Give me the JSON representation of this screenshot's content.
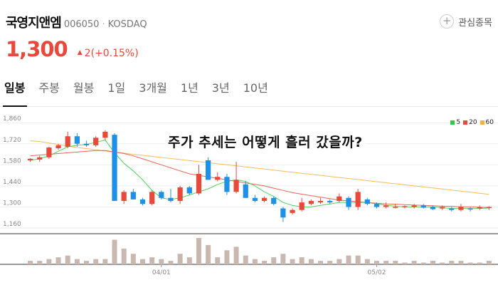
{
  "stock": {
    "name": "국영지앤엠",
    "code": "006050",
    "separator": "·",
    "market": "KOSDAQ",
    "price": "1,300",
    "change_arrow": "▲",
    "change": "2(+0.15%)",
    "up_color": "#e8493a",
    "down_color": "#1e90e8"
  },
  "watch": {
    "icon": "plus-icon",
    "plus": "+",
    "label": "관심종목"
  },
  "tabs": [
    {
      "label": "일봉",
      "active": true
    },
    {
      "label": "주봉",
      "active": false
    },
    {
      "label": "월봉",
      "active": false
    },
    {
      "label": "1일",
      "active": false
    },
    {
      "label": "3개월",
      "active": false
    },
    {
      "label": "1년",
      "active": false
    },
    {
      "label": "3년",
      "active": false
    },
    {
      "label": "10년",
      "active": false
    }
  ],
  "overlay": {
    "title": "주가 추세는 어떻게 흘러 갔을까?"
  },
  "chart_data": {
    "type": "candlestick",
    "y_ticks": [
      "1,860",
      "1,720",
      "1,580",
      "1,440",
      "1,300",
      "1,160"
    ],
    "y_tick_values": [
      1860,
      1720,
      1580,
      1440,
      1300,
      1160
    ],
    "ylim": [
      1160,
      1880
    ],
    "x_ticks": [
      {
        "label": "04/01",
        "index": 14
      },
      {
        "label": "05/02",
        "index": 37
      }
    ],
    "legend": [
      {
        "name": "5",
        "color": "#2ecc40"
      },
      {
        "name": "20",
        "color": "#e8493a"
      },
      {
        "name": "60",
        "color": "#f5b041"
      }
    ],
    "candles": [
      [
        1610,
        1625,
        1600,
        1620,
        2
      ],
      [
        1615,
        1640,
        1600,
        1630,
        2
      ],
      [
        1630,
        1700,
        1620,
        1695,
        3
      ],
      [
        1690,
        1720,
        1680,
        1710,
        4
      ],
      [
        1700,
        1800,
        1690,
        1770,
        5
      ],
      [
        1770,
        1790,
        1700,
        1720,
        3
      ],
      [
        1720,
        1740,
        1700,
        1710,
        2
      ],
      [
        1710,
        1770,
        1700,
        1760,
        3
      ],
      [
        1760,
        1810,
        1740,
        1800,
        3
      ],
      [
        1780,
        1790,
        1340,
        1340,
        14
      ],
      [
        1340,
        1410,
        1320,
        1400,
        9
      ],
      [
        1400,
        1420,
        1350,
        1350,
        6
      ],
      [
        1350,
        1360,
        1310,
        1320,
        3
      ],
      [
        1320,
        1410,
        1310,
        1400,
        4
      ],
      [
        1400,
        1410,
        1350,
        1360,
        3
      ],
      [
        1360,
        1420,
        1330,
        1340,
        2
      ],
      [
        1340,
        1440,
        1320,
        1430,
        6
      ],
      [
        1430,
        1440,
        1380,
        1390,
        4
      ],
      [
        1390,
        1580,
        1380,
        1520,
        15
      ],
      [
        1610,
        1630,
        1480,
        1480,
        11
      ],
      [
        1480,
        1530,
        1470,
        1500,
        4
      ],
      [
        1500,
        1520,
        1380,
        1400,
        8
      ],
      [
        1400,
        1600,
        1390,
        1480,
        10
      ],
      [
        1450,
        1470,
        1360,
        1360,
        5
      ],
      [
        1360,
        1380,
        1330,
        1340,
        3
      ],
      [
        1340,
        1370,
        1330,
        1360,
        2
      ],
      [
        1360,
        1370,
        1310,
        1320,
        4
      ],
      [
        1290,
        1300,
        1200,
        1230,
        6
      ],
      [
        1260,
        1290,
        1250,
        1280,
        3
      ],
      [
        1280,
        1360,
        1270,
        1330,
        4
      ],
      [
        1320,
        1350,
        1310,
        1340,
        3
      ],
      [
        1330,
        1360,
        1320,
        1340,
        2
      ],
      [
        1340,
        1350,
        1320,
        1330,
        2
      ],
      [
        1340,
        1390,
        1330,
        1370,
        3
      ],
      [
        1360,
        1370,
        1280,
        1300,
        5
      ],
      [
        1300,
        1420,
        1280,
        1400,
        5
      ],
      [
        1350,
        1360,
        1310,
        1320,
        3
      ],
      [
        1320,
        1330,
        1290,
        1300,
        2
      ],
      [
        1300,
        1330,
        1290,
        1310,
        2
      ],
      [
        1300,
        1320,
        1290,
        1300,
        2
      ],
      [
        1300,
        1310,
        1290,
        1305,
        1
      ],
      [
        1300,
        1320,
        1290,
        1310,
        2
      ],
      [
        1310,
        1320,
        1290,
        1295,
        1
      ],
      [
        1300,
        1310,
        1280,
        1285,
        2
      ],
      [
        1290,
        1310,
        1280,
        1300,
        1
      ],
      [
        1290,
        1300,
        1270,
        1280,
        2
      ],
      [
        1280,
        1320,
        1270,
        1300,
        2
      ],
      [
        1290,
        1300,
        1270,
        1285,
        1
      ],
      [
        1290,
        1310,
        1280,
        1300,
        1
      ],
      [
        1295,
        1305,
        1280,
        1300,
        2
      ]
    ],
    "ma5": [
      1610,
      1620,
      1640,
      1670,
      1700,
      1710,
      1715,
      1730,
      1745,
      1660,
      1590,
      1540,
      1480,
      1410,
      1360,
      1350,
      1360,
      1380,
      1400,
      1420,
      1450,
      1470,
      1480,
      1470,
      1440,
      1400,
      1370,
      1330,
      1310,
      1300,
      1300,
      1310,
      1320,
      1330,
      1330,
      1330,
      1330,
      1320,
      1310,
      1305,
      1300,
      1300,
      1300,
      1300,
      1295,
      1290,
      1290,
      1290,
      1290,
      1293
    ],
    "ma20": [
      1640,
      1645,
      1650,
      1655,
      1660,
      1665,
      1670,
      1675,
      1675,
      1665,
      1655,
      1640,
      1620,
      1600,
      1580,
      1560,
      1540,
      1520,
      1510,
      1500,
      1490,
      1480,
      1470,
      1460,
      1450,
      1440,
      1425,
      1410,
      1395,
      1385,
      1375,
      1365,
      1355,
      1345,
      1340,
      1335,
      1330,
      1325,
      1320,
      1318,
      1315,
      1312,
      1310,
      1308,
      1305,
      1303,
      1301,
      1300,
      1298,
      1296
    ],
    "ma60": [
      1740,
      1735,
      1725,
      1715,
      1705,
      1695,
      1688,
      1680,
      1672,
      1665,
      1658,
      1650,
      1643,
      1636,
      1629,
      1622,
      1615,
      1608,
      1601,
      1594,
      1587,
      1580,
      1573,
      1566,
      1559,
      1552,
      1545,
      1538,
      1531,
      1524,
      1517,
      1510,
      1503,
      1496,
      1489,
      1482,
      1475,
      1468,
      1461,
      1454,
      1447,
      1440,
      1433,
      1426,
      1419,
      1412,
      1405,
      1398,
      1391,
      1384
    ]
  }
}
